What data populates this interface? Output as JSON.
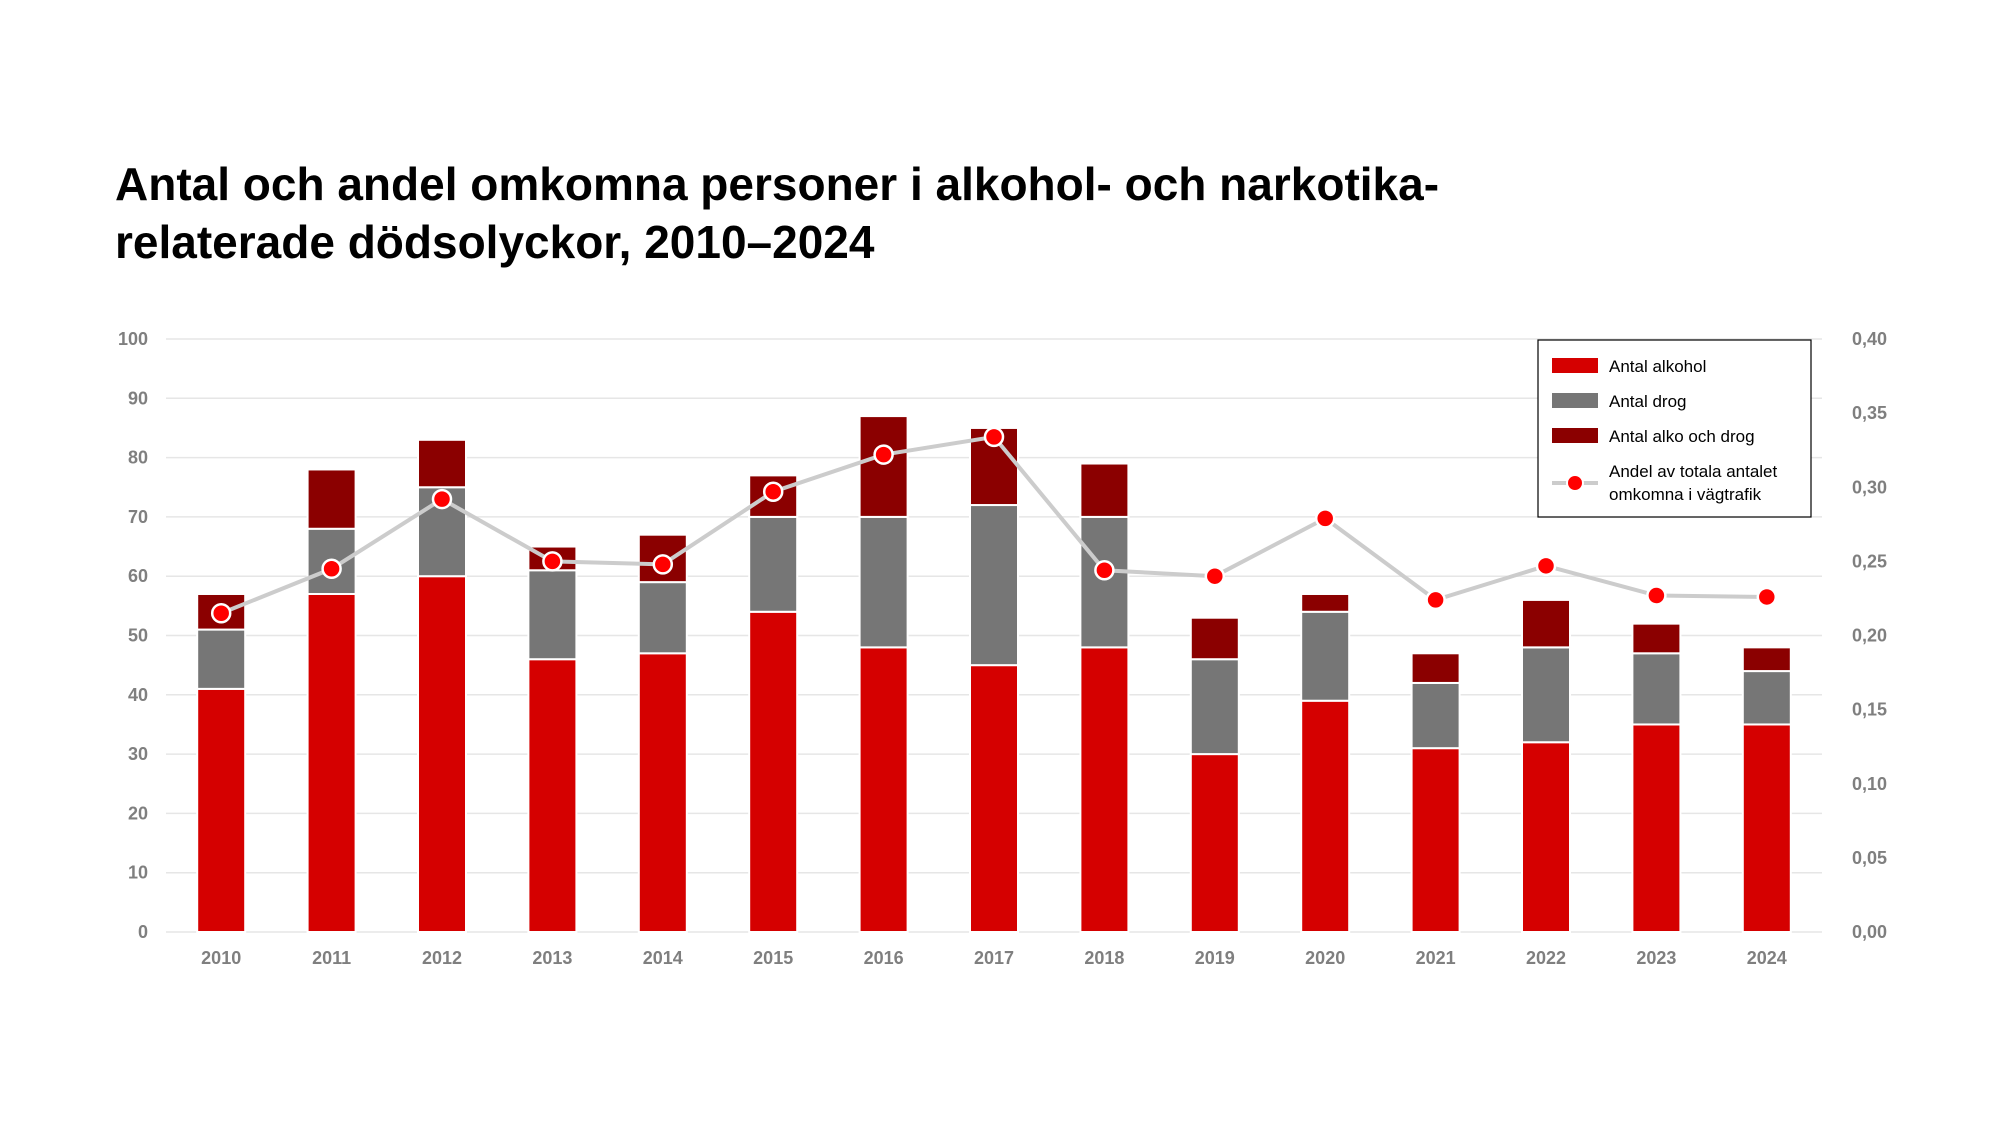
{
  "title_lines": [
    "Antal och andel omkomna personer i alkohol- och narkotika-",
    "relaterade dödsolyckor, 2010–2024"
  ],
  "colors": {
    "alkohol": "#d50000",
    "drog": "#767676",
    "alko_drog": "#8b0000",
    "line": "#cccccc",
    "marker": "#ff0000",
    "grid": "#e6e6e6",
    "tick": "#7f7f7f"
  },
  "chart_data": {
    "type": "bar",
    "stacked": true,
    "categories": [
      "2010",
      "2011",
      "2012",
      "2013",
      "2014",
      "2015",
      "2016",
      "2017",
      "2018",
      "2019",
      "2020",
      "2021",
      "2022",
      "2023",
      "2024"
    ],
    "series": [
      {
        "name": "Antal alkohol",
        "values": [
          41,
          57,
          60,
          46,
          47,
          54,
          48,
          45,
          48,
          30,
          39,
          31,
          32,
          35,
          35
        ]
      },
      {
        "name": "Antal drog",
        "values": [
          10,
          11,
          15,
          15,
          12,
          16,
          22,
          27,
          22,
          16,
          15,
          11,
          16,
          12,
          9
        ]
      },
      {
        "name": "Antal alko och drog",
        "values": [
          6,
          10,
          8,
          4,
          8,
          7,
          17,
          13,
          9,
          7,
          3,
          5,
          8,
          5,
          4
        ]
      }
    ],
    "line_series": {
      "name": "Andel av totala antalet omkomna i vägtrafik",
      "name_lines": [
        "Andel av totala antalet",
        "omkomna i vägtrafik"
      ],
      "axis": "right",
      "values": [
        0.215,
        0.245,
        0.292,
        0.25,
        0.248,
        0.297,
        0.322,
        0.334,
        0.244,
        0.24,
        0.279,
        0.224,
        0.247,
        0.227,
        0.226
      ]
    },
    "ylim": [
      0,
      100
    ],
    "yticks": [
      "0",
      "10",
      "20",
      "30",
      "40",
      "50",
      "60",
      "70",
      "80",
      "90",
      "100"
    ],
    "y2lim": [
      0,
      0.4
    ],
    "y2ticks": [
      "0,00",
      "0,05",
      "0,10",
      "0,15",
      "0,20",
      "0,25",
      "0,30",
      "0,35",
      "0,40"
    ],
    "grid": true,
    "legend_position": "top-right"
  }
}
